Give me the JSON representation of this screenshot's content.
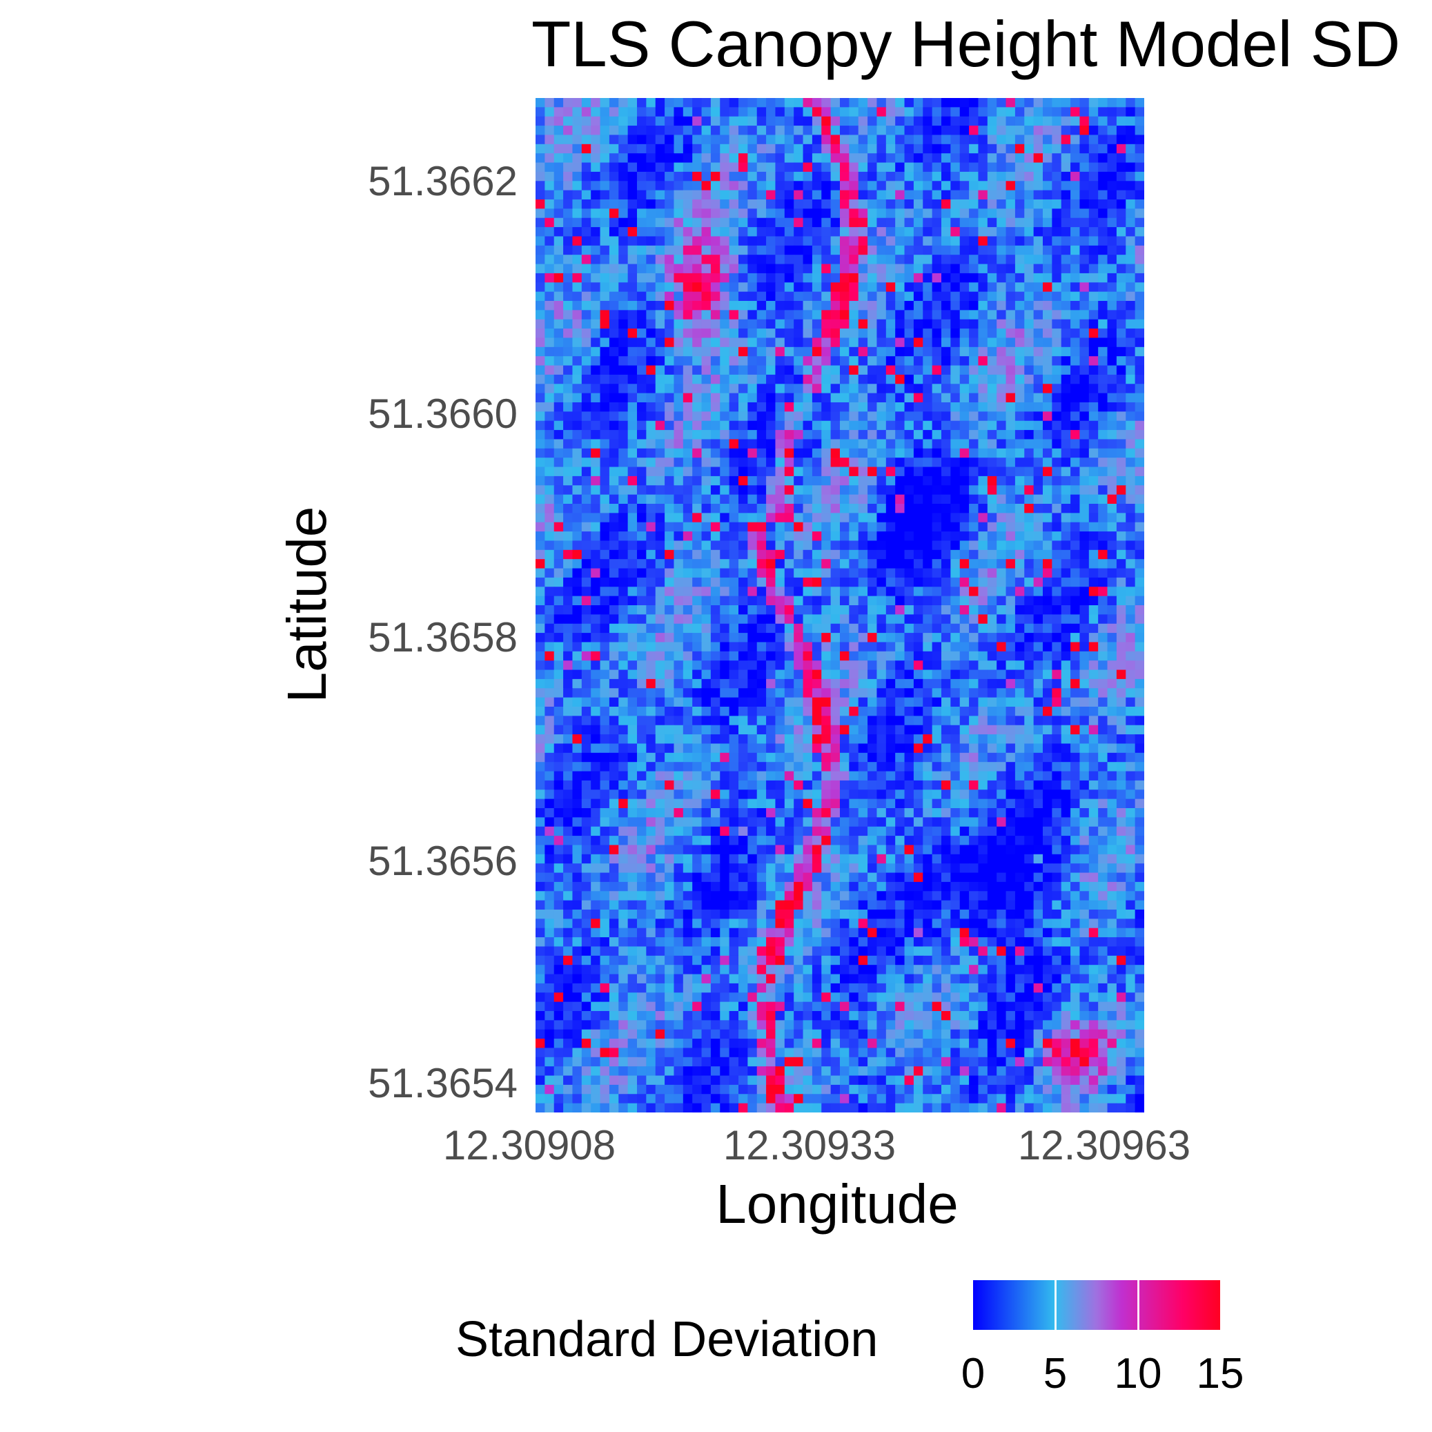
{
  "chart_data": {
    "type": "heatmap",
    "title": "TLS Canopy Height Model SD",
    "xlabel": "Longitude",
    "ylabel": "Latitude",
    "x_ticks": [
      "12.30908",
      "12.30933",
      "12.30963"
    ],
    "y_ticks": [
      "51.3662",
      "51.3660",
      "51.3658",
      "51.3656",
      "51.3654"
    ],
    "xlim": [
      12.309075,
      12.309645
    ],
    "ylim": [
      51.36537,
      51.36627
    ],
    "legend": {
      "title": "Standard Deviation",
      "position": "bottom",
      "range": [
        0,
        15
      ],
      "ticks": [
        "0",
        "5",
        "10",
        "15"
      ],
      "colors": [
        "#0000ff",
        "#33bbee",
        "#a070e0",
        "#c030d0",
        "#ff0066",
        "#ff0022"
      ]
    },
    "grid": "raster 66 x 110 cells",
    "features": [
      {
        "area": "upper-left patch near lat 51.3661",
        "value": 13
      },
      {
        "area": "vertical ridge near lon 12.30940",
        "value": 10
      },
      {
        "area": "lower-right cluster near lat 51.3654",
        "value": 14
      },
      {
        "area": "large central-right basin near lat 51.3656",
        "value": 1
      }
    ]
  }
}
